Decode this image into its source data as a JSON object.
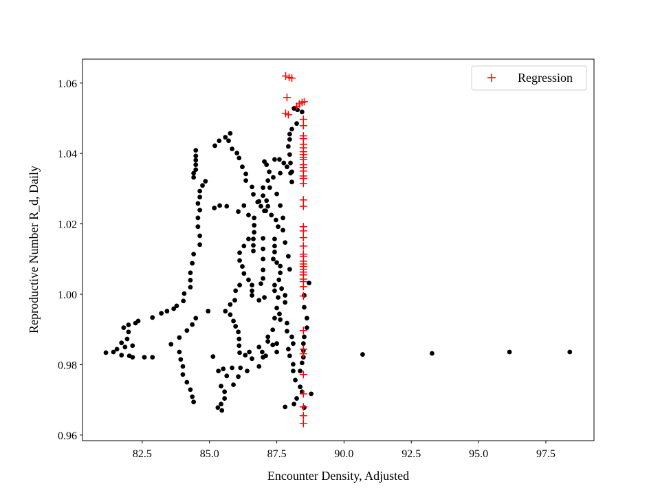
{
  "chart_data": {
    "type": "scatter",
    "title": "",
    "xlabel": "Encounter Density, Adjusted",
    "ylabel": "Reproductive Number R_d, Daily",
    "xlim": [
      80.28,
      99.29
    ],
    "ylim": [
      0.9584,
      1.0668
    ],
    "xticks": [
      82.5,
      85.0,
      87.5,
      90.0,
      92.5,
      95.0,
      97.5
    ],
    "xtick_labels": [
      "82.5",
      "85.0",
      "87.5",
      "90.0",
      "92.5",
      "95.0",
      "97.5"
    ],
    "yticks": [
      0.96,
      0.98,
      1.0,
      1.02,
      1.04,
      1.06
    ],
    "ytick_labels": [
      "0.96",
      "0.98",
      "1.00",
      "1.02",
      "1.04",
      "1.06"
    ],
    "grid": false,
    "legend_position": "top-right",
    "series": [
      {
        "name": "",
        "marker": "circle",
        "color": "#000000",
        "points": [
          [
            81.15,
            0.9834
          ],
          [
            81.43,
            0.9836
          ],
          [
            81.56,
            0.9844
          ],
          [
            81.73,
            0.9827
          ],
          [
            81.86,
            0.985
          ],
          [
            81.73,
            0.9862
          ],
          [
            82.02,
            0.9825
          ],
          [
            82.14,
            0.9821
          ],
          [
            82.14,
            0.9854
          ],
          [
            81.94,
            0.9873
          ],
          [
            81.99,
            0.9893
          ],
          [
            81.81,
            0.9905
          ],
          [
            81.99,
            0.9913
          ],
          [
            82.25,
            0.9918
          ],
          [
            82.35,
            0.9924
          ],
          [
            82.58,
            0.9821
          ],
          [
            82.88,
            0.9821
          ],
          [
            82.88,
            0.9934
          ],
          [
            83.21,
            0.9946
          ],
          [
            83.42,
            0.9952
          ],
          [
            83.67,
            0.9959
          ],
          [
            83.78,
            0.9967
          ],
          [
            84.03,
            0.9981
          ],
          [
            84.06,
            1.0002
          ],
          [
            84.29,
            1.002
          ],
          [
            84.29,
            1.004
          ],
          [
            84.29,
            1.0061
          ],
          [
            84.36,
            1.0088
          ],
          [
            84.41,
            1.0114
          ],
          [
            84.64,
            1.0141
          ],
          [
            84.64,
            1.0166
          ],
          [
            84.57,
            1.0192
          ],
          [
            84.57,
            1.0217
          ],
          [
            84.64,
            1.0239
          ],
          [
            84.57,
            1.0258
          ],
          [
            84.64,
            1.0276
          ],
          [
            84.64,
            1.0293
          ],
          [
            84.74,
            1.0309
          ],
          [
            84.85,
            1.0321
          ],
          [
            84.49,
            1.0409
          ],
          [
            84.49,
            1.0393
          ],
          [
            84.49,
            1.0381
          ],
          [
            84.49,
            1.0368
          ],
          [
            84.49,
            1.0354
          ],
          [
            84.41,
            1.0344
          ],
          [
            84.41,
            1.0332
          ],
          [
            85.2,
            1.0422
          ],
          [
            85.36,
            1.0436
          ],
          [
            85.59,
            1.0446
          ],
          [
            85.77,
            1.0457
          ],
          [
            85.71,
            1.0436
          ],
          [
            85.84,
            1.0413
          ],
          [
            86.02,
            1.0401
          ],
          [
            86.1,
            1.0387
          ],
          [
            86.22,
            1.0362
          ],
          [
            86.35,
            1.0342
          ],
          [
            86.35,
            1.0323
          ],
          [
            86.58,
            1.0305
          ],
          [
            86.63,
            1.0284
          ],
          [
            86.79,
            1.0262
          ],
          [
            86.91,
            1.025
          ],
          [
            87.04,
            1.0237
          ],
          [
            85.18,
            1.0245
          ],
          [
            85.38,
            1.0252
          ],
          [
            85.64,
            1.025
          ],
          [
            86.07,
            1.0235
          ],
          [
            86.28,
            1.0252
          ],
          [
            86.45,
            1.0225
          ],
          [
            86.66,
            1.0217
          ],
          [
            86.66,
            1.0196
          ],
          [
            86.66,
            1.0176
          ],
          [
            86.63,
            1.0157
          ],
          [
            86.63,
            1.0139
          ],
          [
            86.63,
            1.0123
          ],
          [
            86.45,
            1.0157
          ],
          [
            86.28,
            1.0137
          ],
          [
            86.12,
            1.0118
          ],
          [
            86.12,
            1.0096
          ],
          [
            86.22,
            1.0079
          ],
          [
            86.28,
            1.0059
          ],
          [
            86.45,
            1.0041
          ],
          [
            86.58,
            1.0026
          ],
          [
            86.58,
            1.001
          ],
          [
            86.58,
            0.9997
          ],
          [
            86.84,
            0.9983
          ],
          [
            87.04,
            0.9991
          ],
          [
            86.12,
            1.0026
          ],
          [
            85.97,
            1.001
          ],
          [
            85.94,
            0.9983
          ],
          [
            85.77,
            0.9971
          ],
          [
            85.59,
            0.9952
          ],
          [
            85.77,
            0.9942
          ],
          [
            85.89,
            0.9924
          ],
          [
            85.97,
            0.9909
          ],
          [
            86.07,
            0.9893
          ],
          [
            86.1,
            0.9873
          ],
          [
            86.1,
            0.9854
          ],
          [
            86.12,
            0.9834
          ],
          [
            86.33,
            0.9827
          ],
          [
            86.48,
            0.9836
          ],
          [
            86.58,
            0.9817
          ],
          [
            86.84,
            0.985
          ],
          [
            86.96,
            0.9836
          ],
          [
            87.09,
            0.9825
          ],
          [
            86.84,
            0.9795
          ],
          [
            86.99,
            0.9821
          ],
          [
            87.35,
            0.9856
          ],
          [
            87.5,
            0.986
          ],
          [
            87.5,
            0.9836
          ],
          [
            85.33,
            0.9782
          ],
          [
            85.51,
            0.9788
          ],
          [
            85.64,
            0.9768
          ],
          [
            85.84,
            0.9791
          ],
          [
            86.15,
            0.9791
          ],
          [
            86.4,
            0.9782
          ],
          [
            86.07,
            0.9766
          ],
          [
            85.89,
            0.9743
          ],
          [
            85.43,
            0.9739
          ],
          [
            85.56,
            0.9723
          ],
          [
            85.56,
            0.9704
          ],
          [
            85.43,
            0.9688
          ],
          [
            85.31,
            0.9678
          ],
          [
            85.46,
            0.967
          ],
          [
            85.13,
            0.9823
          ],
          [
            84.95,
            0.9952
          ],
          [
            84.49,
            0.9932
          ],
          [
            84.36,
            0.9914
          ],
          [
            84.16,
            0.9897
          ],
          [
            83.88,
            0.9877
          ],
          [
            83.57,
            0.9858
          ],
          [
            83.88,
            0.9836
          ],
          [
            83.93,
            0.9815
          ],
          [
            84.01,
            0.9795
          ],
          [
            84.01,
            0.9772
          ],
          [
            84.16,
            0.975
          ],
          [
            84.29,
            0.9729
          ],
          [
            84.36,
            0.9709
          ],
          [
            84.41,
            0.9694
          ],
          [
            87.04,
            1.0377
          ],
          [
            87.12,
            1.0368
          ],
          [
            87.22,
            1.0348
          ],
          [
            87.37,
            1.0332
          ],
          [
            87.17,
            1.0323
          ],
          [
            87.24,
            1.0303
          ],
          [
            86.99,
            1.0303
          ],
          [
            86.99,
            1.028
          ],
          [
            86.84,
            1.0264
          ],
          [
            87.12,
            1.0266
          ],
          [
            87.17,
            1.025
          ],
          [
            87.09,
            1.0237
          ],
          [
            87.42,
            1.0383
          ],
          [
            87.6,
            1.0383
          ],
          [
            87.76,
            1.0373
          ],
          [
            87.88,
            1.0362
          ],
          [
            87.63,
            1.0344
          ],
          [
            88.01,
            1.0344
          ],
          [
            87.5,
            1.0285
          ],
          [
            87.63,
            1.0252
          ],
          [
            87.3,
            1.0225
          ],
          [
            87.47,
            1.0211
          ],
          [
            87.73,
            1.0217
          ],
          [
            87.55,
            1.0192
          ],
          [
            87.73,
            1.0182
          ],
          [
            87.42,
            1.0157
          ],
          [
            87.42,
            1.0137
          ],
          [
            87.42,
            1.012
          ],
          [
            87.37,
            1.01
          ],
          [
            87.5,
            1.009
          ],
          [
            87.63,
            1.008
          ],
          [
            87.63,
            1.0061
          ],
          [
            87.58,
            1.0041
          ],
          [
            87.42,
            1.0026
          ],
          [
            87.42,
            1.001
          ],
          [
            87.55,
            0.9991
          ],
          [
            87.68,
            1.0016
          ],
          [
            87.81,
            0.9997
          ],
          [
            87.81,
            0.9977
          ],
          [
            87.5,
            0.9961
          ],
          [
            87.6,
            0.9944
          ],
          [
            87.42,
            0.9932
          ],
          [
            87.63,
            0.9928
          ],
          [
            87.35,
            0.9899
          ],
          [
            87.17,
            0.9879
          ],
          [
            87.17,
            0.9866
          ],
          [
            86.99,
            1.0159
          ],
          [
            86.99,
            1.0129
          ],
          [
            86.99,
            1.01
          ],
          [
            86.99,
            1.0069
          ],
          [
            86.99,
            1.0045
          ],
          [
            86.91,
            1.003
          ],
          [
            87.81,
            1.0147
          ],
          [
            87.93,
            1.0108
          ],
          [
            87.98,
            1.0071
          ],
          [
            87.88,
            0.9918
          ],
          [
            87.88,
            0.9895
          ],
          [
            88.06,
            0.9879
          ],
          [
            88.11,
            0.986
          ],
          [
            87.93,
            0.9844
          ],
          [
            87.98,
            0.9825
          ],
          [
            88.11,
            0.9801
          ],
          [
            88.11,
            0.9782
          ],
          [
            88.19,
            0.9756
          ],
          [
            88.37,
            0.9737
          ],
          [
            88.44,
            0.9723
          ],
          [
            88.24,
            0.9704
          ],
          [
            88.14,
            0.9688
          ],
          [
            87.81,
            0.968
          ],
          [
            88.52,
            0.9678
          ],
          [
            88.78,
            0.9717
          ],
          [
            88.14,
            1.0528
          ],
          [
            88.27,
            1.0524
          ],
          [
            88.44,
            1.0518
          ],
          [
            88.24,
            1.0485
          ],
          [
            88.06,
            1.0469
          ],
          [
            87.98,
            1.0455
          ],
          [
            87.98,
            1.044
          ],
          [
            87.93,
            1.042
          ],
          [
            87.98,
            1.0397
          ],
          [
            88.01,
            1.0373
          ],
          [
            88.06,
            1.0348
          ],
          [
            88.06,
            1.0319
          ],
          [
            88.7,
            1.0032
          ],
          [
            88.52,
            0.9997
          ],
          [
            88.52,
            0.9963
          ],
          [
            88.62,
            0.9932
          ],
          [
            88.62,
            0.9905
          ],
          [
            88.52,
            0.9879
          ],
          [
            88.49,
            0.986
          ],
          [
            88.49,
            0.984
          ],
          [
            88.49,
            0.9821
          ],
          [
            88.44,
            0.9805
          ],
          [
            88.37,
            0.9782
          ],
          [
            90.69,
            0.9829
          ],
          [
            93.27,
            0.9832
          ],
          [
            96.15,
            0.9836
          ],
          [
            98.39,
            0.9836
          ]
        ]
      },
      {
        "name": "Regression",
        "marker": "plus",
        "color": "#ff0000",
        "points": [
          [
            87.83,
            1.062
          ],
          [
            87.96,
            1.0616
          ],
          [
            88.06,
            1.0614
          ],
          [
            87.88,
            1.0559
          ],
          [
            87.83,
            1.0514
          ],
          [
            87.93,
            1.051
          ],
          [
            88.24,
            1.0534
          ],
          [
            88.34,
            1.0541
          ],
          [
            88.44,
            1.0545
          ],
          [
            88.52,
            1.0547
          ],
          [
            88.49,
            1.0497
          ],
          [
            88.49,
            1.0479
          ],
          [
            88.49,
            1.045
          ],
          [
            88.49,
            1.0442
          ],
          [
            88.49,
            1.0426
          ],
          [
            88.49,
            1.0416
          ],
          [
            88.49,
            1.0405
          ],
          [
            88.49,
            1.0397
          ],
          [
            88.49,
            1.0389
          ],
          [
            88.49,
            1.0383
          ],
          [
            88.49,
            1.0368
          ],
          [
            88.49,
            1.036
          ],
          [
            88.49,
            1.035
          ],
          [
            88.49,
            1.0336
          ],
          [
            88.49,
            1.0329
          ],
          [
            88.49,
            1.0315
          ],
          [
            88.49,
            1.0268
          ],
          [
            88.49,
            1.025
          ],
          [
            88.49,
            1.0192
          ],
          [
            88.49,
            1.018
          ],
          [
            88.49,
            1.0161
          ],
          [
            88.49,
            1.0137
          ],
          [
            88.49,
            1.0114
          ],
          [
            88.49,
            1.0108
          ],
          [
            88.49,
            1.0094
          ],
          [
            88.49,
            1.0086
          ],
          [
            88.49,
            1.0079
          ],
          [
            88.49,
            1.0071
          ],
          [
            88.49,
            1.0063
          ],
          [
            88.49,
            1.0055
          ],
          [
            88.49,
            1.0043
          ],
          [
            88.49,
            1.0036
          ],
          [
            88.49,
            1.0022
          ],
          [
            88.49,
            0.9995
          ],
          [
            88.49,
            0.9897
          ],
          [
            88.49,
            0.9844
          ],
          [
            88.49,
            0.9831
          ],
          [
            88.49,
            0.9772
          ],
          [
            88.49,
            0.9717
          ],
          [
            88.49,
            0.968
          ],
          [
            88.49,
            0.9655
          ],
          [
            88.49,
            0.9633
          ]
        ]
      }
    ]
  }
}
